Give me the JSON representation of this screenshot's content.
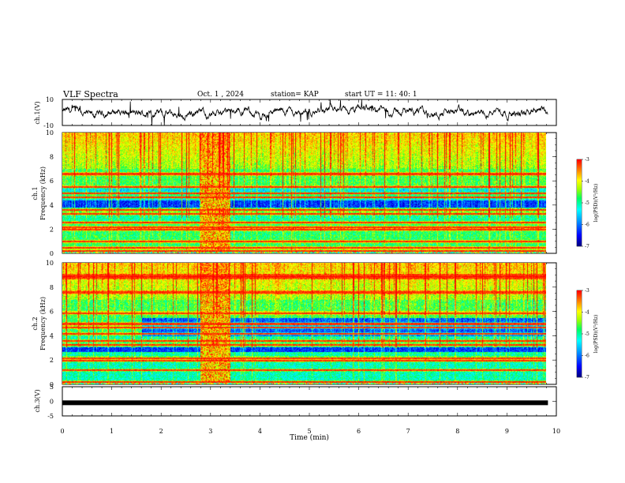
{
  "header": {
    "title": "VLF Spectra",
    "date": "Oct. 1 , 2024",
    "station": "station= KAP",
    "start": "start UT = 11: 40: 1"
  },
  "colors": {
    "colormap": [
      "#00007f",
      "#0000ff",
      "#00a0ff",
      "#00ffff",
      "#00ff60",
      "#a0ff00",
      "#ffff00",
      "#ff8000",
      "#ff0000",
      "#ffffff"
    ]
  },
  "chart_data": [
    {
      "type": "line",
      "panel": "ch1-waveform",
      "ylabel": "ch.1(V)",
      "ylim": [
        -10,
        10
      ],
      "yticks": [
        "10",
        "-10"
      ],
      "xlim": [
        0,
        10
      ],
      "x_end_min": 9.83
    },
    {
      "type": "heatmap",
      "panel": "ch1-spectrogram",
      "ylabel": [
        "ch.1",
        "Frequency (kHz)"
      ],
      "ylim": [
        0,
        10
      ],
      "yticks": [
        "0",
        "2",
        "4",
        "6",
        "8",
        "10"
      ],
      "xlim": [
        0,
        10
      ],
      "colorbar": {
        "label": "log(PSD)(V²/Hz)",
        "range": [
          -7,
          -3
        ],
        "ticks": [
          "-3",
          "-4",
          "-5",
          "-6",
          "-7"
        ]
      },
      "bright_lines_khz": [
        0.2,
        0.5,
        1.0,
        2.0,
        2.2,
        2.6,
        3.3,
        3.6,
        4.7,
        5.0,
        5.5,
        6.6
      ],
      "burst_interval_min": [
        2.8,
        3.4
      ]
    },
    {
      "type": "heatmap",
      "panel": "ch2-spectrogram",
      "ylabel": [
        "ch.2",
        "Frequency (kHz)"
      ],
      "ylim": [
        0,
        10
      ],
      "yticks": [
        "0",
        "2",
        "4",
        "6",
        "8",
        "10"
      ],
      "xlim": [
        0,
        10
      ],
      "colorbar": {
        "label": "log(PSD)(V²/Hz)",
        "range": [
          -7,
          -3
        ],
        "ticks": [
          "-3",
          "-4",
          "-5",
          "-6",
          "-7"
        ]
      },
      "bright_lines_khz": [
        0.2,
        1.2,
        2.0,
        2.2,
        3.3,
        3.6,
        4.2,
        4.7,
        5.0,
        5.9,
        7.6,
        8.8,
        9.0
      ],
      "burst_interval_min": [
        2.8,
        3.4
      ]
    },
    {
      "type": "line",
      "panel": "ch3-waveform",
      "ylabel": "ch.3(V)",
      "ylim": [
        -5,
        5
      ],
      "yticks": [
        "5",
        "0",
        "-5"
      ],
      "xlim": [
        0,
        10
      ],
      "xticks": [
        "0",
        "1",
        "2",
        "3",
        "4",
        "5",
        "6",
        "7",
        "8",
        "9",
        "10"
      ],
      "xlabel": "Time (min)",
      "level_v": -0.5
    }
  ]
}
